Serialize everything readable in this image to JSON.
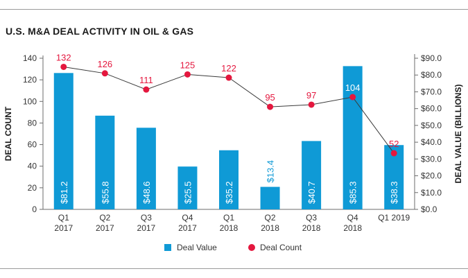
{
  "chart_data": {
    "type": "bar",
    "title": "U.S. M&A DEAL ACTIVITY IN OIL & GAS",
    "categories": [
      [
        "Q1",
        "2017"
      ],
      [
        "Q2",
        "2017"
      ],
      [
        "Q3",
        "2017"
      ],
      [
        "Q4",
        "2017"
      ],
      [
        "Q1",
        "2018"
      ],
      [
        "Q2",
        "2018"
      ],
      [
        "Q3",
        "2018"
      ],
      [
        "Q4",
        "2018"
      ],
      [
        "Q1 2019",
        ""
      ]
    ],
    "series": [
      {
        "name": "Deal Value",
        "kind": "bar",
        "axis": "right",
        "color": "#0f9ad6",
        "values": [
          81.2,
          55.8,
          48.6,
          25.5,
          35.2,
          13.4,
          40.7,
          85.3,
          38.3
        ],
        "labels": [
          "$81.2",
          "$55.8",
          "$48.6",
          "$25.5",
          "$35.2",
          "$13.4",
          "$40.7",
          "$85.3",
          "$38.3"
        ]
      },
      {
        "name": "Deal Count",
        "kind": "line",
        "axis": "left",
        "color": "#e4173e",
        "values": [
          132,
          126,
          111,
          125,
          122,
          95,
          97,
          104,
          52
        ],
        "labels": [
          "132",
          "126",
          "111",
          "125",
          "122",
          "95",
          "97",
          "104",
          "52"
        ]
      }
    ],
    "ylabel_left": "DEAL COUNT",
    "ylabel_right": "DEAL VALUE (BILLIONS)",
    "ylim_left": [
      0,
      140
    ],
    "ylim_right": [
      0,
      90
    ],
    "yticks_left": [
      "0",
      "20",
      "40",
      "60",
      "80",
      "100",
      "120",
      "140"
    ],
    "yticks_right": [
      "$0.0",
      "$10.0",
      "$20.0",
      "$30.0",
      "$40.0",
      "$50.0",
      "$60.0",
      "$70.0",
      "$80.0",
      "$90.0"
    ],
    "grid": false,
    "legend": [
      "Deal Value",
      "Deal Count"
    ],
    "legend_position": "bottom-center"
  }
}
